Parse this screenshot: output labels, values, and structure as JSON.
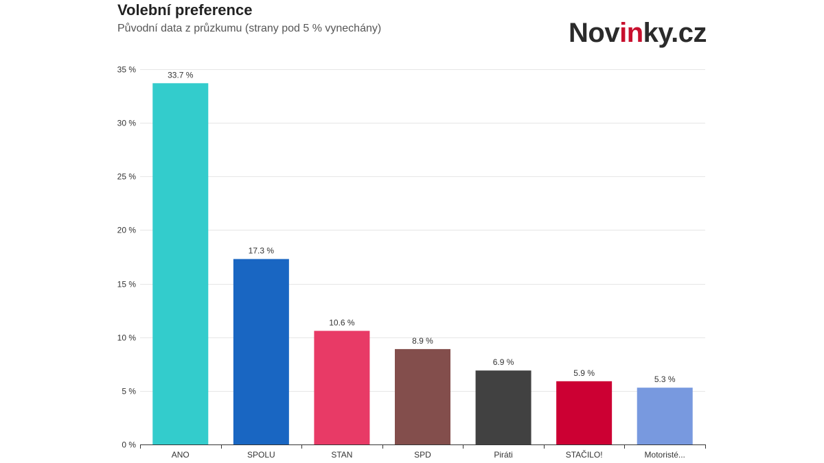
{
  "chart_data": {
    "type": "bar",
    "title": "Volební preference",
    "subtitle": "Původní data z průzkumu (strany pod 5 % vynechány)",
    "categories": [
      "ANO",
      "SPOLU",
      "STAN",
      "SPD",
      "Piráti",
      "STAČILO!",
      "Motoristé..."
    ],
    "values": [
      33.7,
      17.3,
      10.6,
      8.9,
      6.9,
      5.9,
      5.3
    ],
    "value_labels": [
      "33.7 %",
      "17.3 %",
      "10.6 %",
      "8.9 %",
      "6.9 %",
      "5.9 %",
      "5.3 %"
    ],
    "colors": [
      "#33cccc",
      "#1966c2",
      "#e83a66",
      "#834e4c",
      "#414141",
      "#cc0033",
      "#7899df"
    ],
    "yticks": [
      0,
      5,
      10,
      15,
      20,
      25,
      30,
      35
    ],
    "ytick_labels": [
      "0 %",
      "5 %",
      "10 %",
      "15 %",
      "20 %",
      "25 %",
      "30 %",
      "35 %"
    ],
    "ylim": [
      0,
      35
    ],
    "grid": true,
    "legend": "none",
    "xlabel": "",
    "ylabel": ""
  },
  "brand": {
    "logo_pre": "Nov",
    "logo_accent": "in",
    "logo_post": "ky.cz",
    "accent_color": "#c8102e"
  }
}
